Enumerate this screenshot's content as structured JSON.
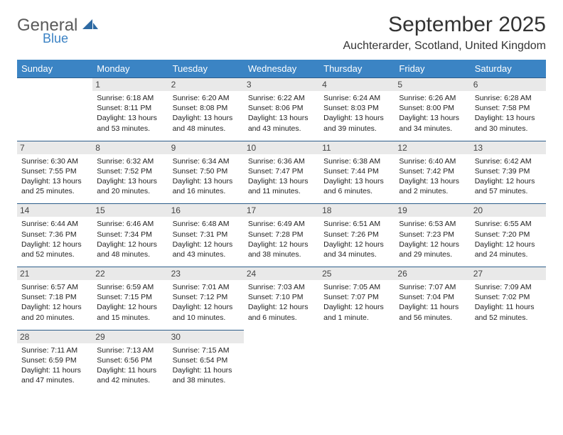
{
  "brand": {
    "main": "General",
    "sub": "Blue"
  },
  "title": "September 2025",
  "location": "Auchterarder, Scotland, United Kingdom",
  "colors": {
    "header_bg": "#3b84c4",
    "header_text": "#ffffff",
    "daynum_bg": "#e9e9e9",
    "cell_border": "#2d5d8a",
    "logo_gray": "#5a5a5a",
    "logo_blue": "#3b82c4"
  },
  "typography": {
    "title_fontsize": 30,
    "location_fontsize": 16,
    "header_fontsize": 13,
    "body_fontsize": 10.5
  },
  "weekdays": [
    "Sunday",
    "Monday",
    "Tuesday",
    "Wednesday",
    "Thursday",
    "Friday",
    "Saturday"
  ],
  "weeks": [
    [
      null,
      {
        "n": "1",
        "sunrise": "Sunrise: 6:18 AM",
        "sunset": "Sunset: 8:11 PM",
        "daylight": "Daylight: 13 hours and 53 minutes."
      },
      {
        "n": "2",
        "sunrise": "Sunrise: 6:20 AM",
        "sunset": "Sunset: 8:08 PM",
        "daylight": "Daylight: 13 hours and 48 minutes."
      },
      {
        "n": "3",
        "sunrise": "Sunrise: 6:22 AM",
        "sunset": "Sunset: 8:06 PM",
        "daylight": "Daylight: 13 hours and 43 minutes."
      },
      {
        "n": "4",
        "sunrise": "Sunrise: 6:24 AM",
        "sunset": "Sunset: 8:03 PM",
        "daylight": "Daylight: 13 hours and 39 minutes."
      },
      {
        "n": "5",
        "sunrise": "Sunrise: 6:26 AM",
        "sunset": "Sunset: 8:00 PM",
        "daylight": "Daylight: 13 hours and 34 minutes."
      },
      {
        "n": "6",
        "sunrise": "Sunrise: 6:28 AM",
        "sunset": "Sunset: 7:58 PM",
        "daylight": "Daylight: 13 hours and 30 minutes."
      }
    ],
    [
      {
        "n": "7",
        "sunrise": "Sunrise: 6:30 AM",
        "sunset": "Sunset: 7:55 PM",
        "daylight": "Daylight: 13 hours and 25 minutes."
      },
      {
        "n": "8",
        "sunrise": "Sunrise: 6:32 AM",
        "sunset": "Sunset: 7:52 PM",
        "daylight": "Daylight: 13 hours and 20 minutes."
      },
      {
        "n": "9",
        "sunrise": "Sunrise: 6:34 AM",
        "sunset": "Sunset: 7:50 PM",
        "daylight": "Daylight: 13 hours and 16 minutes."
      },
      {
        "n": "10",
        "sunrise": "Sunrise: 6:36 AM",
        "sunset": "Sunset: 7:47 PM",
        "daylight": "Daylight: 13 hours and 11 minutes."
      },
      {
        "n": "11",
        "sunrise": "Sunrise: 6:38 AM",
        "sunset": "Sunset: 7:44 PM",
        "daylight": "Daylight: 13 hours and 6 minutes."
      },
      {
        "n": "12",
        "sunrise": "Sunrise: 6:40 AM",
        "sunset": "Sunset: 7:42 PM",
        "daylight": "Daylight: 13 hours and 2 minutes."
      },
      {
        "n": "13",
        "sunrise": "Sunrise: 6:42 AM",
        "sunset": "Sunset: 7:39 PM",
        "daylight": "Daylight: 12 hours and 57 minutes."
      }
    ],
    [
      {
        "n": "14",
        "sunrise": "Sunrise: 6:44 AM",
        "sunset": "Sunset: 7:36 PM",
        "daylight": "Daylight: 12 hours and 52 minutes."
      },
      {
        "n": "15",
        "sunrise": "Sunrise: 6:46 AM",
        "sunset": "Sunset: 7:34 PM",
        "daylight": "Daylight: 12 hours and 48 minutes."
      },
      {
        "n": "16",
        "sunrise": "Sunrise: 6:48 AM",
        "sunset": "Sunset: 7:31 PM",
        "daylight": "Daylight: 12 hours and 43 minutes."
      },
      {
        "n": "17",
        "sunrise": "Sunrise: 6:49 AM",
        "sunset": "Sunset: 7:28 PM",
        "daylight": "Daylight: 12 hours and 38 minutes."
      },
      {
        "n": "18",
        "sunrise": "Sunrise: 6:51 AM",
        "sunset": "Sunset: 7:26 PM",
        "daylight": "Daylight: 12 hours and 34 minutes."
      },
      {
        "n": "19",
        "sunrise": "Sunrise: 6:53 AM",
        "sunset": "Sunset: 7:23 PM",
        "daylight": "Daylight: 12 hours and 29 minutes."
      },
      {
        "n": "20",
        "sunrise": "Sunrise: 6:55 AM",
        "sunset": "Sunset: 7:20 PM",
        "daylight": "Daylight: 12 hours and 24 minutes."
      }
    ],
    [
      {
        "n": "21",
        "sunrise": "Sunrise: 6:57 AM",
        "sunset": "Sunset: 7:18 PM",
        "daylight": "Daylight: 12 hours and 20 minutes."
      },
      {
        "n": "22",
        "sunrise": "Sunrise: 6:59 AM",
        "sunset": "Sunset: 7:15 PM",
        "daylight": "Daylight: 12 hours and 15 minutes."
      },
      {
        "n": "23",
        "sunrise": "Sunrise: 7:01 AM",
        "sunset": "Sunset: 7:12 PM",
        "daylight": "Daylight: 12 hours and 10 minutes."
      },
      {
        "n": "24",
        "sunrise": "Sunrise: 7:03 AM",
        "sunset": "Sunset: 7:10 PM",
        "daylight": "Daylight: 12 hours and 6 minutes."
      },
      {
        "n": "25",
        "sunrise": "Sunrise: 7:05 AM",
        "sunset": "Sunset: 7:07 PM",
        "daylight": "Daylight: 12 hours and 1 minute."
      },
      {
        "n": "26",
        "sunrise": "Sunrise: 7:07 AM",
        "sunset": "Sunset: 7:04 PM",
        "daylight": "Daylight: 11 hours and 56 minutes."
      },
      {
        "n": "27",
        "sunrise": "Sunrise: 7:09 AM",
        "sunset": "Sunset: 7:02 PM",
        "daylight": "Daylight: 11 hours and 52 minutes."
      }
    ],
    [
      {
        "n": "28",
        "sunrise": "Sunrise: 7:11 AM",
        "sunset": "Sunset: 6:59 PM",
        "daylight": "Daylight: 11 hours and 47 minutes."
      },
      {
        "n": "29",
        "sunrise": "Sunrise: 7:13 AM",
        "sunset": "Sunset: 6:56 PM",
        "daylight": "Daylight: 11 hours and 42 minutes."
      },
      {
        "n": "30",
        "sunrise": "Sunrise: 7:15 AM",
        "sunset": "Sunset: 6:54 PM",
        "daylight": "Daylight: 11 hours and 38 minutes."
      },
      null,
      null,
      null,
      null
    ]
  ]
}
